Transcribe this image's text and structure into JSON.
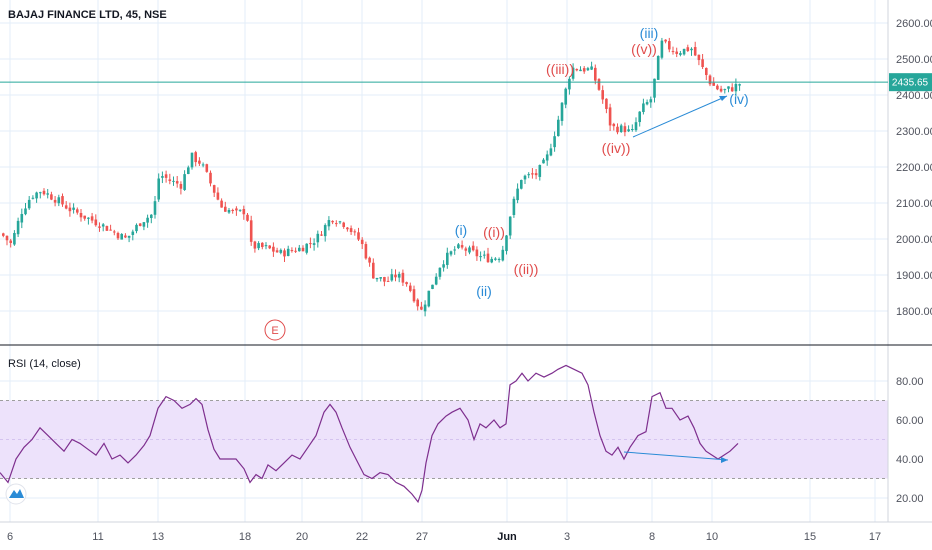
{
  "header": {
    "title": "BAJAJ FINANCE LTD, 45, NSE"
  },
  "rsi_panel": {
    "title": "RSI (14, close)"
  },
  "price_axis": {
    "ticks": [
      "2600.00",
      "2500.00",
      "2400.00",
      "2300.00",
      "2200.00",
      "2100.00",
      "2000.00",
      "1900.00",
      "1800.00"
    ]
  },
  "rsi_axis": {
    "ticks": [
      "80.00",
      "60.00",
      "40.00",
      "20.00"
    ]
  },
  "time_axis": {
    "ticks": [
      "6",
      "11",
      "13",
      "18",
      "20",
      "22",
      "27",
      "Jun",
      "3",
      "8",
      "10",
      "15",
      "17"
    ]
  },
  "last_price": {
    "label": "2435.65",
    "color": "#26a69a"
  },
  "earnings_marker": {
    "label": "E",
    "color": "#e04b4b"
  },
  "wave_labels": {
    "i": "(i)",
    "ii": "(ii)",
    "iii": "(iii)",
    "iv": "(iv)",
    "w1": "((i))",
    "w2": "((ii))",
    "w3": "((iii))",
    "w4": "((iv))",
    "w5": "((v))"
  },
  "colors": {
    "up": "#26a69a",
    "down": "#ef5350",
    "rsi_line": "#7e2f8e",
    "rsi_band": "#ede2fb",
    "grid": "#e3eef8",
    "divergence": "#2a8bd6",
    "wave_red": "#e04b4b",
    "wave_blue": "#2a8bd6"
  },
  "chart_data": [
    {
      "type": "candlestick",
      "title": "BAJAJ FINANCE LTD, 45, NSE",
      "ylim": [
        1750,
        2650
      ],
      "y_ticks": [
        1800,
        1900,
        2000,
        2100,
        2200,
        2300,
        2400,
        2500,
        2600
      ],
      "last_price": 2435.65,
      "close_path": [
        [
          0,
          2015
        ],
        [
          10,
          1985
        ],
        [
          20,
          2075
        ],
        [
          30,
          2120
        ],
        [
          40,
          2135
        ],
        [
          55,
          2110
        ],
        [
          70,
          2080
        ],
        [
          85,
          2060
        ],
        [
          100,
          2040
        ],
        [
          115,
          2015
        ],
        [
          125,
          2000
        ],
        [
          140,
          2050
        ],
        [
          152,
          2070
        ],
        [
          158,
          2180
        ],
        [
          170,
          2160
        ],
        [
          180,
          2150
        ],
        [
          190,
          2230
        ],
        [
          200,
          2210
        ],
        [
          210,
          2150
        ],
        [
          220,
          2090
        ],
        [
          235,
          2070
        ],
        [
          245,
          2080
        ],
        [
          250,
          1980
        ],
        [
          265,
          1975
        ],
        [
          280,
          1960
        ],
        [
          300,
          1975
        ],
        [
          315,
          2000
        ],
        [
          330,
          2060
        ],
        [
          345,
          2040
        ],
        [
          360,
          1990
        ],
        [
          372,
          1900
        ],
        [
          385,
          1880
        ],
        [
          395,
          1900
        ],
        [
          405,
          1880
        ],
        [
          420,
          1800
        ],
        [
          430,
          1870
        ],
        [
          440,
          1935
        ],
        [
          455,
          1975
        ],
        [
          465,
          1970
        ],
        [
          480,
          1950
        ],
        [
          490,
          1945
        ],
        [
          500,
          1955
        ],
        [
          510,
          2080
        ],
        [
          520,
          2170
        ],
        [
          535,
          2180
        ],
        [
          545,
          2220
        ],
        [
          555,
          2310
        ],
        [
          565,
          2420
        ],
        [
          570,
          2475
        ],
        [
          590,
          2470
        ],
        [
          600,
          2400
        ],
        [
          610,
          2310
        ],
        [
          625,
          2305
        ],
        [
          630,
          2290
        ],
        [
          640,
          2360
        ],
        [
          650,
          2390
        ],
        [
          660,
          2545
        ],
        [
          675,
          2520
        ],
        [
          690,
          2530
        ],
        [
          700,
          2480
        ],
        [
          710,
          2430
        ],
        [
          720,
          2410
        ],
        [
          732,
          2420
        ],
        [
          740,
          2435
        ]
      ]
    },
    {
      "type": "line",
      "title": "RSI (14, close)",
      "ylim": [
        14,
        90
      ],
      "y_ticks": [
        20,
        40,
        60,
        80
      ],
      "band": [
        30,
        70
      ],
      "values": [
        [
          0,
          33
        ],
        [
          8,
          28
        ],
        [
          16,
          40
        ],
        [
          24,
          46
        ],
        [
          32,
          50
        ],
        [
          40,
          56
        ],
        [
          48,
          52
        ],
        [
          56,
          48
        ],
        [
          64,
          44
        ],
        [
          72,
          50
        ],
        [
          80,
          48
        ],
        [
          88,
          45
        ],
        [
          96,
          42
        ],
        [
          104,
          48
        ],
        [
          112,
          40
        ],
        [
          120,
          42
        ],
        [
          128,
          38
        ],
        [
          136,
          42
        ],
        [
          144,
          47
        ],
        [
          150,
          52
        ],
        [
          158,
          66
        ],
        [
          166,
          72
        ],
        [
          174,
          70
        ],
        [
          182,
          66
        ],
        [
          190,
          68
        ],
        [
          196,
          71
        ],
        [
          202,
          68
        ],
        [
          208,
          55
        ],
        [
          214,
          45
        ],
        [
          220,
          40
        ],
        [
          228,
          40
        ],
        [
          236,
          40
        ],
        [
          244,
          35
        ],
        [
          250,
          28
        ],
        [
          256,
          32
        ],
        [
          262,
          30
        ],
        [
          268,
          37
        ],
        [
          276,
          34
        ],
        [
          284,
          38
        ],
        [
          292,
          42
        ],
        [
          300,
          40
        ],
        [
          308,
          46
        ],
        [
          316,
          52
        ],
        [
          324,
          64
        ],
        [
          330,
          68
        ],
        [
          336,
          64
        ],
        [
          342,
          56
        ],
        [
          350,
          46
        ],
        [
          356,
          40
        ],
        [
          364,
          32
        ],
        [
          372,
          30
        ],
        [
          380,
          33
        ],
        [
          388,
          32
        ],
        [
          396,
          28
        ],
        [
          404,
          26
        ],
        [
          412,
          22
        ],
        [
          418,
          18
        ],
        [
          422,
          24
        ],
        [
          426,
          38
        ],
        [
          432,
          52
        ],
        [
          438,
          58
        ],
        [
          446,
          62
        ],
        [
          452,
          64
        ],
        [
          460,
          66
        ],
        [
          468,
          60
        ],
        [
          474,
          50
        ],
        [
          480,
          58
        ],
        [
          486,
          56
        ],
        [
          494,
          60
        ],
        [
          500,
          56
        ],
        [
          506,
          58
        ],
        [
          510,
          78
        ],
        [
          516,
          80
        ],
        [
          522,
          84
        ],
        [
          528,
          80
        ],
        [
          536,
          84
        ],
        [
          544,
          82
        ],
        [
          552,
          84
        ],
        [
          558,
          86
        ],
        [
          566,
          88
        ],
        [
          574,
          86
        ],
        [
          582,
          84
        ],
        [
          588,
          78
        ],
        [
          594,
          64
        ],
        [
          600,
          52
        ],
        [
          606,
          44
        ],
        [
          612,
          42
        ],
        [
          618,
          46
        ],
        [
          624,
          40
        ],
        [
          630,
          46
        ],
        [
          638,
          52
        ],
        [
          646,
          54
        ],
        [
          652,
          72
        ],
        [
          660,
          74
        ],
        [
          666,
          66
        ],
        [
          672,
          66
        ],
        [
          680,
          60
        ],
        [
          688,
          62
        ],
        [
          694,
          56
        ],
        [
          700,
          48
        ],
        [
          706,
          44
        ],
        [
          712,
          42
        ],
        [
          718,
          40
        ],
        [
          724,
          42
        ],
        [
          730,
          44
        ],
        [
          738,
          48
        ]
      ]
    }
  ]
}
